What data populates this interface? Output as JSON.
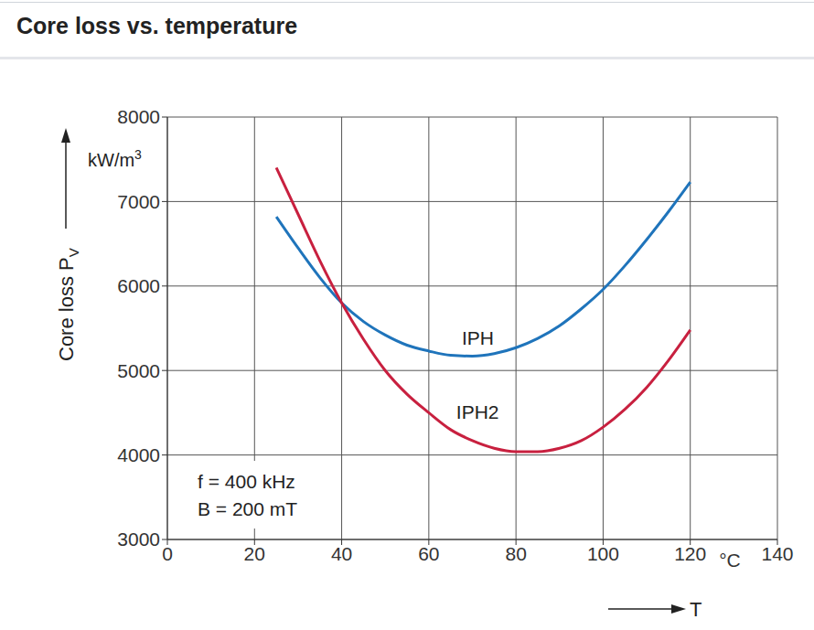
{
  "chart_data": {
    "type": "line",
    "title": "Core loss vs. temperature",
    "y_label": {
      "text": "Core loss P",
      "subscript": "V"
    },
    "y_unit": {
      "text": "kW/m",
      "superscript": "3"
    },
    "x_label": "T",
    "x_unit": "°C",
    "annotations": [
      "f = 400 kHz",
      "B = 200 mT"
    ],
    "x": [
      25,
      30,
      35,
      40,
      45,
      50,
      55,
      60,
      65,
      70,
      75,
      80,
      85,
      90,
      95,
      100,
      105,
      110,
      115,
      120
    ],
    "series": [
      {
        "name": "IPH",
        "color": "#1f74bb",
        "values": [
          6820,
          6450,
          6100,
          5800,
          5580,
          5420,
          5300,
          5230,
          5180,
          5170,
          5200,
          5270,
          5380,
          5530,
          5730,
          5960,
          6240,
          6550,
          6880,
          7230
        ]
      },
      {
        "name": "IPH2",
        "color": "#c8203f",
        "values": [
          7400,
          6850,
          6300,
          5800,
          5370,
          5000,
          4720,
          4500,
          4300,
          4170,
          4080,
          4040,
          4040,
          4080,
          4170,
          4330,
          4540,
          4800,
          5120,
          5480
        ]
      }
    ],
    "xlim": [
      0,
      140
    ],
    "xticks": [
      0,
      20,
      40,
      60,
      80,
      100,
      120,
      140
    ],
    "ylim": [
      3000,
      8000
    ],
    "yticks": [
      3000,
      4000,
      5000,
      6000,
      7000,
      8000
    ],
    "grid": true
  }
}
